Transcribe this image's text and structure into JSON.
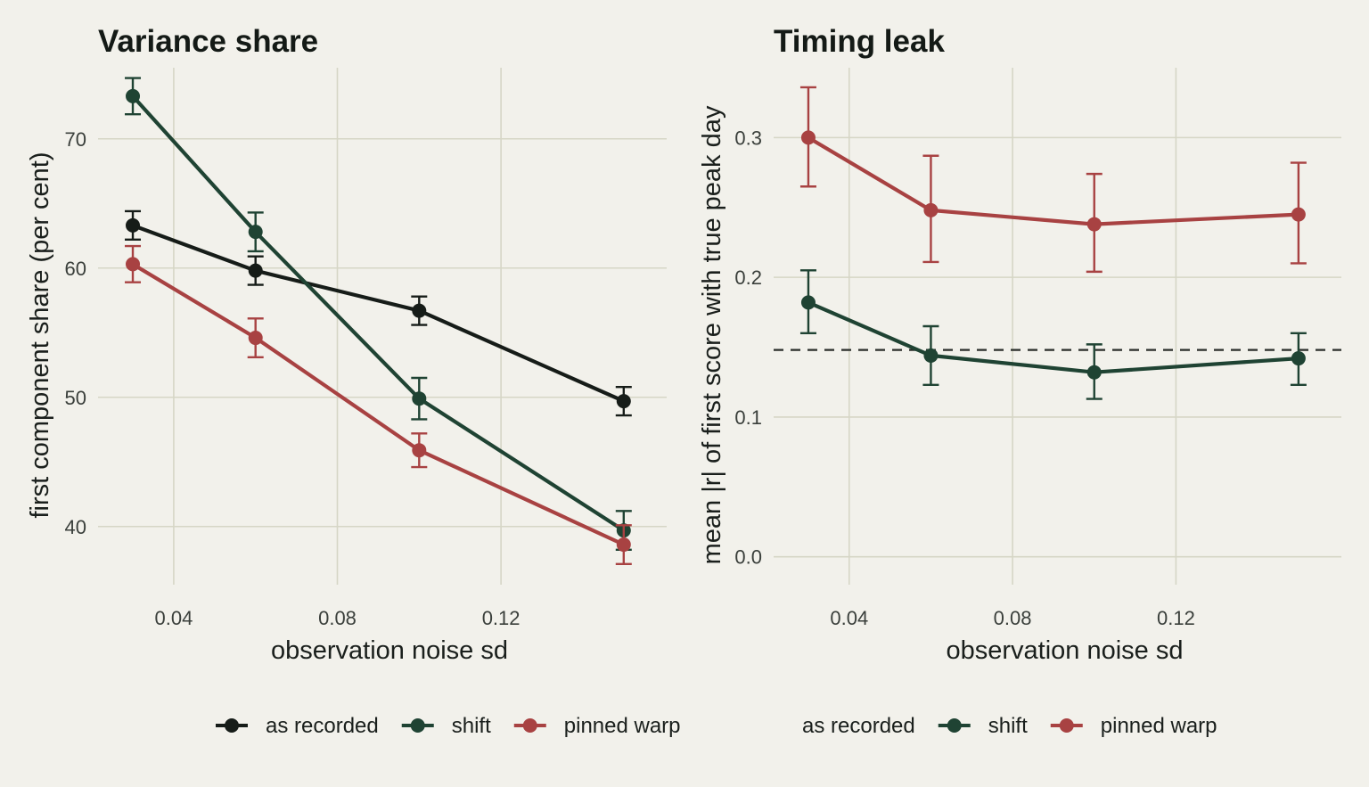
{
  "colors": {
    "background": "#f2f1eb",
    "grid": "#d6d6c6",
    "as recorded": "#161c18",
    "shift": "#1f4333",
    "pinned warp": "#a84242",
    "reference_line": "#2a2e2b"
  },
  "chart_data": [
    {
      "type": "line",
      "title": "Variance share",
      "xlabel": "observation noise sd",
      "ylabel": "first component share (per cent)",
      "x": [
        0.03,
        0.06,
        0.1,
        0.15
      ],
      "xlim": [
        0.0215,
        0.1605
      ],
      "ylim": [
        35.5,
        75.5
      ],
      "xticks": [
        0.04,
        0.08,
        0.12
      ],
      "xtick_labels": [
        "0.04",
        "0.08",
        "0.12"
      ],
      "yticks": [
        40,
        50,
        60,
        70
      ],
      "ytick_labels": [
        "40",
        "50",
        "60",
        "70"
      ],
      "grid": true,
      "error_bars": true,
      "series": [
        {
          "name": "as recorded",
          "values": [
            63.3,
            59.8,
            56.7,
            49.7
          ],
          "lower": [
            62.2,
            58.7,
            55.6,
            48.6
          ],
          "upper": [
            64.4,
            60.9,
            57.8,
            50.8
          ]
        },
        {
          "name": "shift",
          "values": [
            73.3,
            62.8,
            49.9,
            39.7
          ],
          "lower": [
            71.9,
            61.3,
            48.3,
            38.2
          ],
          "upper": [
            74.7,
            64.3,
            51.5,
            41.2
          ]
        },
        {
          "name": "pinned warp",
          "values": [
            60.3,
            54.6,
            45.9,
            38.6
          ],
          "lower": [
            58.9,
            53.1,
            44.6,
            37.1
          ],
          "upper": [
            61.7,
            56.1,
            47.2,
            40.1
          ]
        }
      ],
      "legend": {
        "position": "bottom",
        "items": [
          "as recorded",
          "shift",
          "pinned warp"
        ]
      }
    },
    {
      "type": "line",
      "title": "Timing leak",
      "xlabel": "observation noise sd",
      "ylabel": "mean |r| of first score with true peak day",
      "x": [
        0.03,
        0.06,
        0.1,
        0.15
      ],
      "xlim": [
        0.0215,
        0.1605
      ],
      "ylim": [
        -0.02,
        0.35
      ],
      "xticks": [
        0.04,
        0.08,
        0.12
      ],
      "xtick_labels": [
        "0.04",
        "0.08",
        "0.12"
      ],
      "yticks": [
        0.0,
        0.1,
        0.2,
        0.3
      ],
      "ytick_labels": [
        "0.0",
        "0.1",
        "0.2",
        "0.3"
      ],
      "grid": true,
      "error_bars": true,
      "reference_line": {
        "y": 0.148,
        "style": "dashed"
      },
      "series": [
        {
          "name": "shift",
          "values": [
            0.182,
            0.144,
            0.132,
            0.142
          ],
          "lower": [
            0.16,
            0.123,
            0.113,
            0.123
          ],
          "upper": [
            0.205,
            0.165,
            0.152,
            0.16
          ]
        },
        {
          "name": "pinned warp",
          "values": [
            0.3,
            0.248,
            0.238,
            0.245
          ],
          "lower": [
            0.265,
            0.211,
            0.204,
            0.21
          ],
          "upper": [
            0.336,
            0.287,
            0.274,
            0.282
          ]
        }
      ],
      "legend": {
        "position": "bottom",
        "items": [
          "as recorded",
          "shift",
          "pinned warp"
        ]
      }
    }
  ]
}
